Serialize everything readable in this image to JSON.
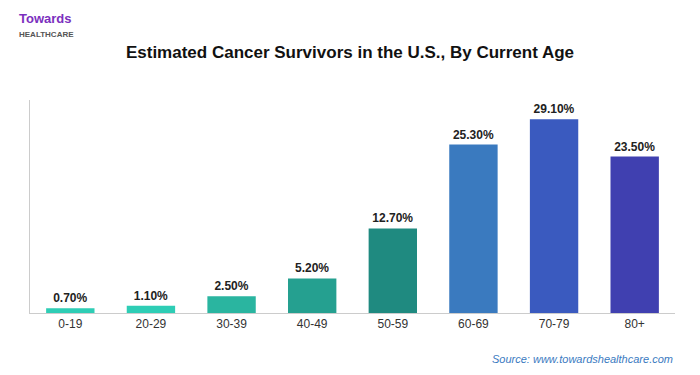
{
  "chart_data": {
    "type": "bar",
    "title": "Estimated Cancer Survivors in the U.S., By Current Age",
    "categories": [
      "0-19",
      "20-29",
      "30-39",
      "40-49",
      "50-59",
      "60-69",
      "70-79",
      "80+"
    ],
    "values": [
      0.7,
      1.1,
      2.5,
      5.2,
      12.7,
      25.3,
      29.1,
      23.5
    ],
    "value_labels": [
      "0.70%",
      "1.10%",
      "2.50%",
      "5.20%",
      "12.70%",
      "25.30%",
      "29.10%",
      "23.50%"
    ],
    "data_labels": true,
    "colors": [
      "#2ecdb5",
      "#2ecdb5",
      "#2ab5a0",
      "#25a090",
      "#1f8a80",
      "#3a7abf",
      "#3a5abf",
      "#4040b0"
    ],
    "ylim": [
      0,
      32
    ],
    "yticks": [],
    "grid": false,
    "tick_labels": "x",
    "annotations": [
      "Towards",
      "HEALTHCARE",
      "Source: www.towardshealthcare.com"
    ]
  }
}
